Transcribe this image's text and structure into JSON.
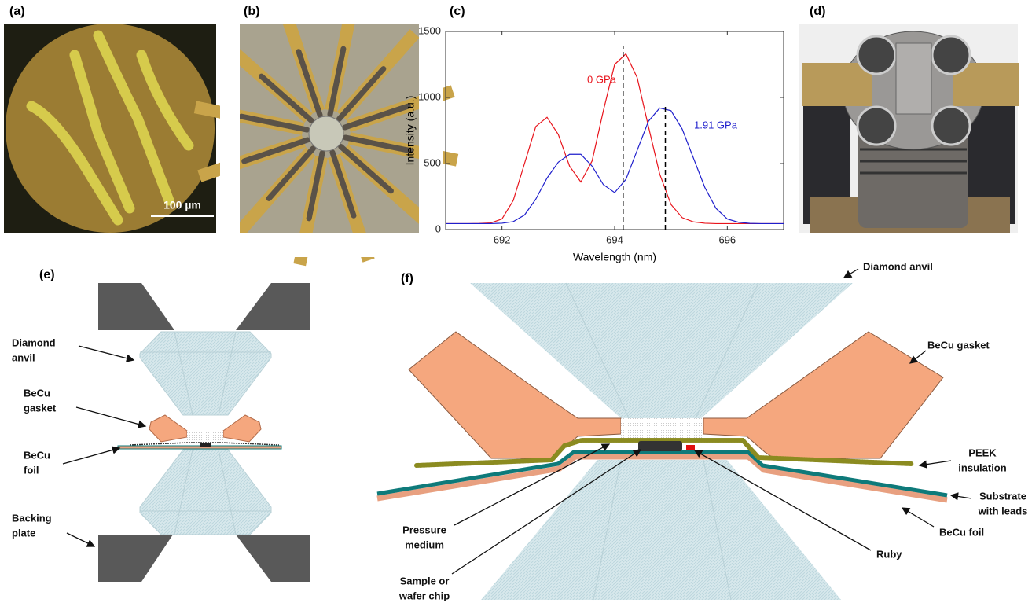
{
  "panels": {
    "a": {
      "label": "(a)",
      "scale_bar": "100 µm"
    },
    "b": {
      "label": "(b)"
    },
    "d": {
      "label": "(d)"
    },
    "e": {
      "label": "(e)",
      "callouts": [
        [
          "Diamond",
          "anvil"
        ],
        [
          "BeCu",
          "gasket"
        ],
        [
          "BeCu",
          "foil"
        ],
        [
          "Backing",
          "plate"
        ]
      ]
    },
    "f": {
      "label": "(f)",
      "callouts": [
        [
          "Diamond anvil"
        ],
        [
          "BeCu gasket"
        ],
        [
          "PEEK",
          "insulation"
        ],
        [
          "Substrate",
          "with leads"
        ],
        [
          "BeCu foil"
        ],
        [
          "Ruby"
        ],
        [
          "Pressure",
          "medium"
        ],
        [
          "Sample or",
          "wafer chip"
        ]
      ]
    }
  },
  "chart_data": {
    "type": "line",
    "panel_label": "(c)",
    "x_label": "Wavelength (nm)",
    "y_label": "Intensity (a.u.)",
    "x": [
      691.0,
      691.2,
      691.4,
      691.6,
      691.8,
      692.0,
      692.2,
      692.4,
      692.6,
      692.8,
      693.0,
      693.2,
      693.4,
      693.6,
      693.8,
      694.0,
      694.2,
      694.4,
      694.6,
      694.8,
      695.0,
      695.2,
      695.4,
      695.6,
      695.8,
      696.0,
      696.2,
      696.4,
      696.6,
      696.8,
      697.0
    ],
    "series": [
      {
        "name": "0 GPa",
        "color": "#e8141c",
        "values": [
          45,
          45,
          45,
          46,
          50,
          80,
          220,
          500,
          780,
          850,
          720,
          480,
          360,
          520,
          900,
          1250,
          1330,
          1150,
          780,
          420,
          190,
          90,
          58,
          48,
          45,
          45,
          45,
          45,
          45,
          45,
          45
        ]
      },
      {
        "name": "1.91 GPa",
        "color": "#1f1fcc",
        "values": [
          45,
          45,
          45,
          45,
          45,
          48,
          60,
          110,
          230,
          390,
          510,
          570,
          570,
          480,
          340,
          280,
          380,
          600,
          820,
          920,
          900,
          760,
          540,
          320,
          160,
          80,
          55,
          47,
          45,
          45,
          45
        ]
      }
    ],
    "reference_lines": [
      {
        "x": 694.15,
        "y": 1390
      },
      {
        "x": 694.9,
        "y": 940
      }
    ],
    "xlim": [
      691,
      697
    ],
    "xticks": [
      692,
      694,
      696
    ],
    "ylim": [
      0,
      1500
    ],
    "yticks": [
      0,
      500,
      1000,
      1500
    ]
  }
}
